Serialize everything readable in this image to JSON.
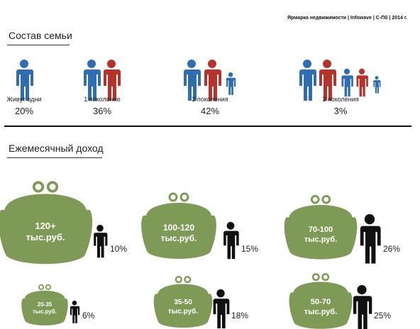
{
  "header": {
    "source": "Ярмарка недвижимости | Infowave | С-Пб | 2014 г."
  },
  "family": {
    "title": "Состав семьи",
    "items": [
      {
        "label": "Живут одни",
        "value": "20%"
      },
      {
        "label": "1 поколение",
        "value": "36%"
      },
      {
        "label": "2 поколения",
        "value": "42%"
      },
      {
        "label": "3 поколения",
        "value": "3%"
      }
    ]
  },
  "income": {
    "title": "Ежемесячный доход",
    "unit": "тыс.руб.",
    "items": [
      {
        "range": "120+",
        "value": "10%"
      },
      {
        "range": "100-120",
        "value": "15%"
      },
      {
        "range": "70-100",
        "value": "26%"
      },
      {
        "range": "20-35",
        "value": "6%"
      },
      {
        "range": "35-50",
        "value": "18%"
      },
      {
        "range": "50-70",
        "value": "25%"
      }
    ]
  },
  "colors": {
    "blue": "#2f6db3",
    "red": "#b5332b",
    "green": "#7f9a56",
    "black": "#111111"
  }
}
